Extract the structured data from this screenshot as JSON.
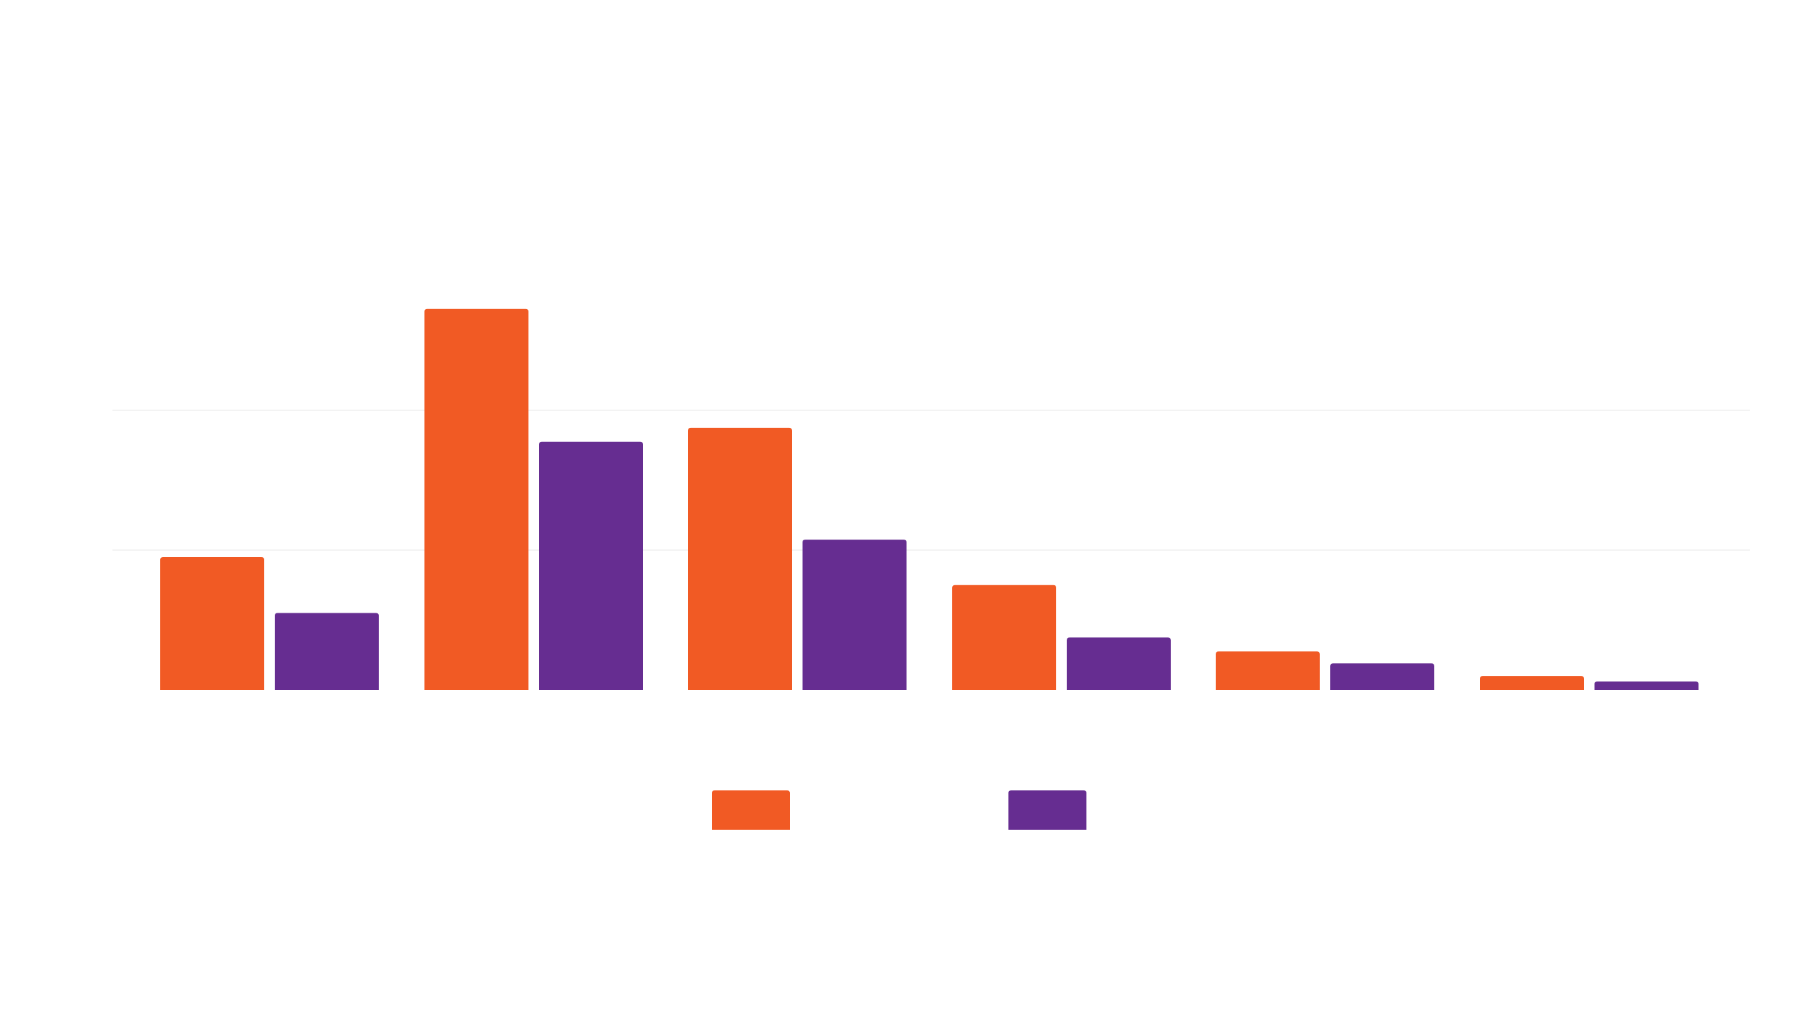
{
  "chart_data": {
    "type": "bar",
    "categories": [
      "",
      "",
      "",
      "",
      "",
      ""
    ],
    "series": [
      {
        "name": "",
        "color": "#f15a24",
        "values": [
          19,
          54.5,
          37.5,
          15,
          5.5,
          2
        ]
      },
      {
        "name": "",
        "color": "#662d91",
        "values": [
          11,
          35.5,
          21.5,
          7.5,
          3.8,
          1.2
        ]
      }
    ],
    "ylim": [
      0,
      60
    ],
    "gridlines": [
      20,
      40
    ],
    "grid": true,
    "legend_position": "bottom-center"
  }
}
